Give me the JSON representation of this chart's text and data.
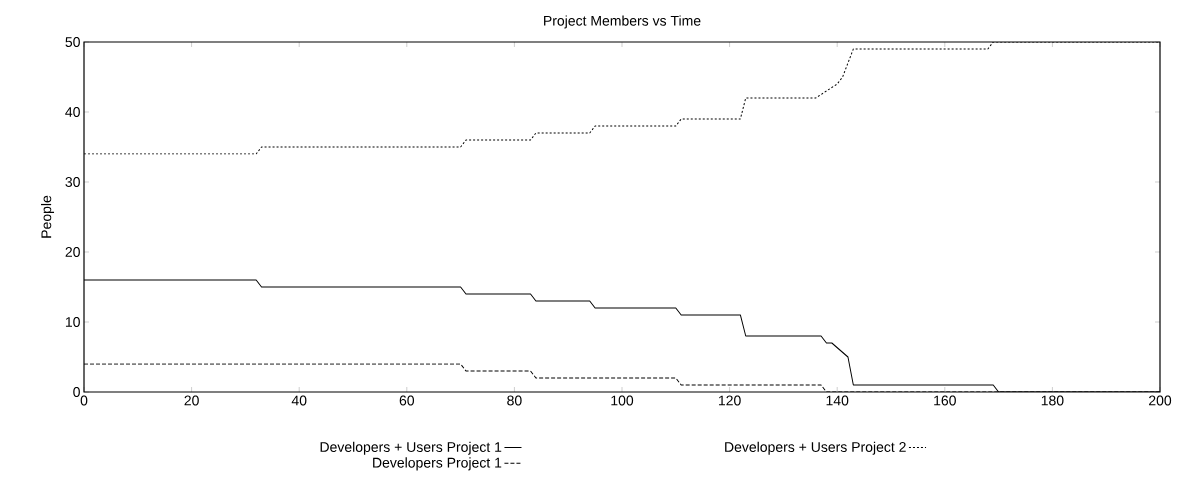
{
  "chart_data": {
    "type": "line",
    "title": "Project Members vs Time",
    "ylabel": "People",
    "xlim": [
      0,
      200
    ],
    "ylim": [
      0,
      50
    ],
    "xticks": [
      0,
      20,
      40,
      60,
      80,
      100,
      120,
      140,
      160,
      180,
      200
    ],
    "yticks": [
      0,
      10,
      20,
      30,
      40,
      50
    ],
    "legend": "bottom",
    "grid": false,
    "marker": "none",
    "series": [
      {
        "name": "Developers + Users Project 1",
        "color": "#000000",
        "line_style": "solid",
        "x": [
          0,
          32,
          33,
          70,
          71,
          83,
          84,
          94,
          95,
          110,
          111,
          122,
          123,
          137,
          138,
          139,
          142,
          143,
          169,
          170,
          200
        ],
        "values": [
          16,
          16,
          15,
          15,
          14,
          14,
          13,
          13,
          12,
          12,
          11,
          11,
          8,
          8,
          7,
          7,
          5,
          1,
          1,
          0,
          0
        ]
      },
      {
        "name": "Developers Project 1",
        "color": "#000000",
        "line_style": "dashed",
        "x": [
          0,
          70,
          71,
          83,
          84,
          110,
          111,
          137,
          138,
          200
        ],
        "values": [
          4,
          4,
          3,
          3,
          2,
          2,
          1,
          1,
          0,
          0
        ]
      },
      {
        "name": "Developers + Users Project 2",
        "color": "#000000",
        "line_style": "dotted",
        "x": [
          0,
          32,
          33,
          70,
          71,
          83,
          84,
          94,
          95,
          110,
          111,
          122,
          123,
          136,
          138,
          140,
          141,
          143,
          168,
          169,
          200
        ],
        "values": [
          34,
          34,
          35,
          35,
          36,
          36,
          37,
          37,
          38,
          38,
          39,
          39,
          42,
          42,
          43,
          44,
          45,
          49,
          49,
          50,
          50
        ]
      }
    ]
  }
}
